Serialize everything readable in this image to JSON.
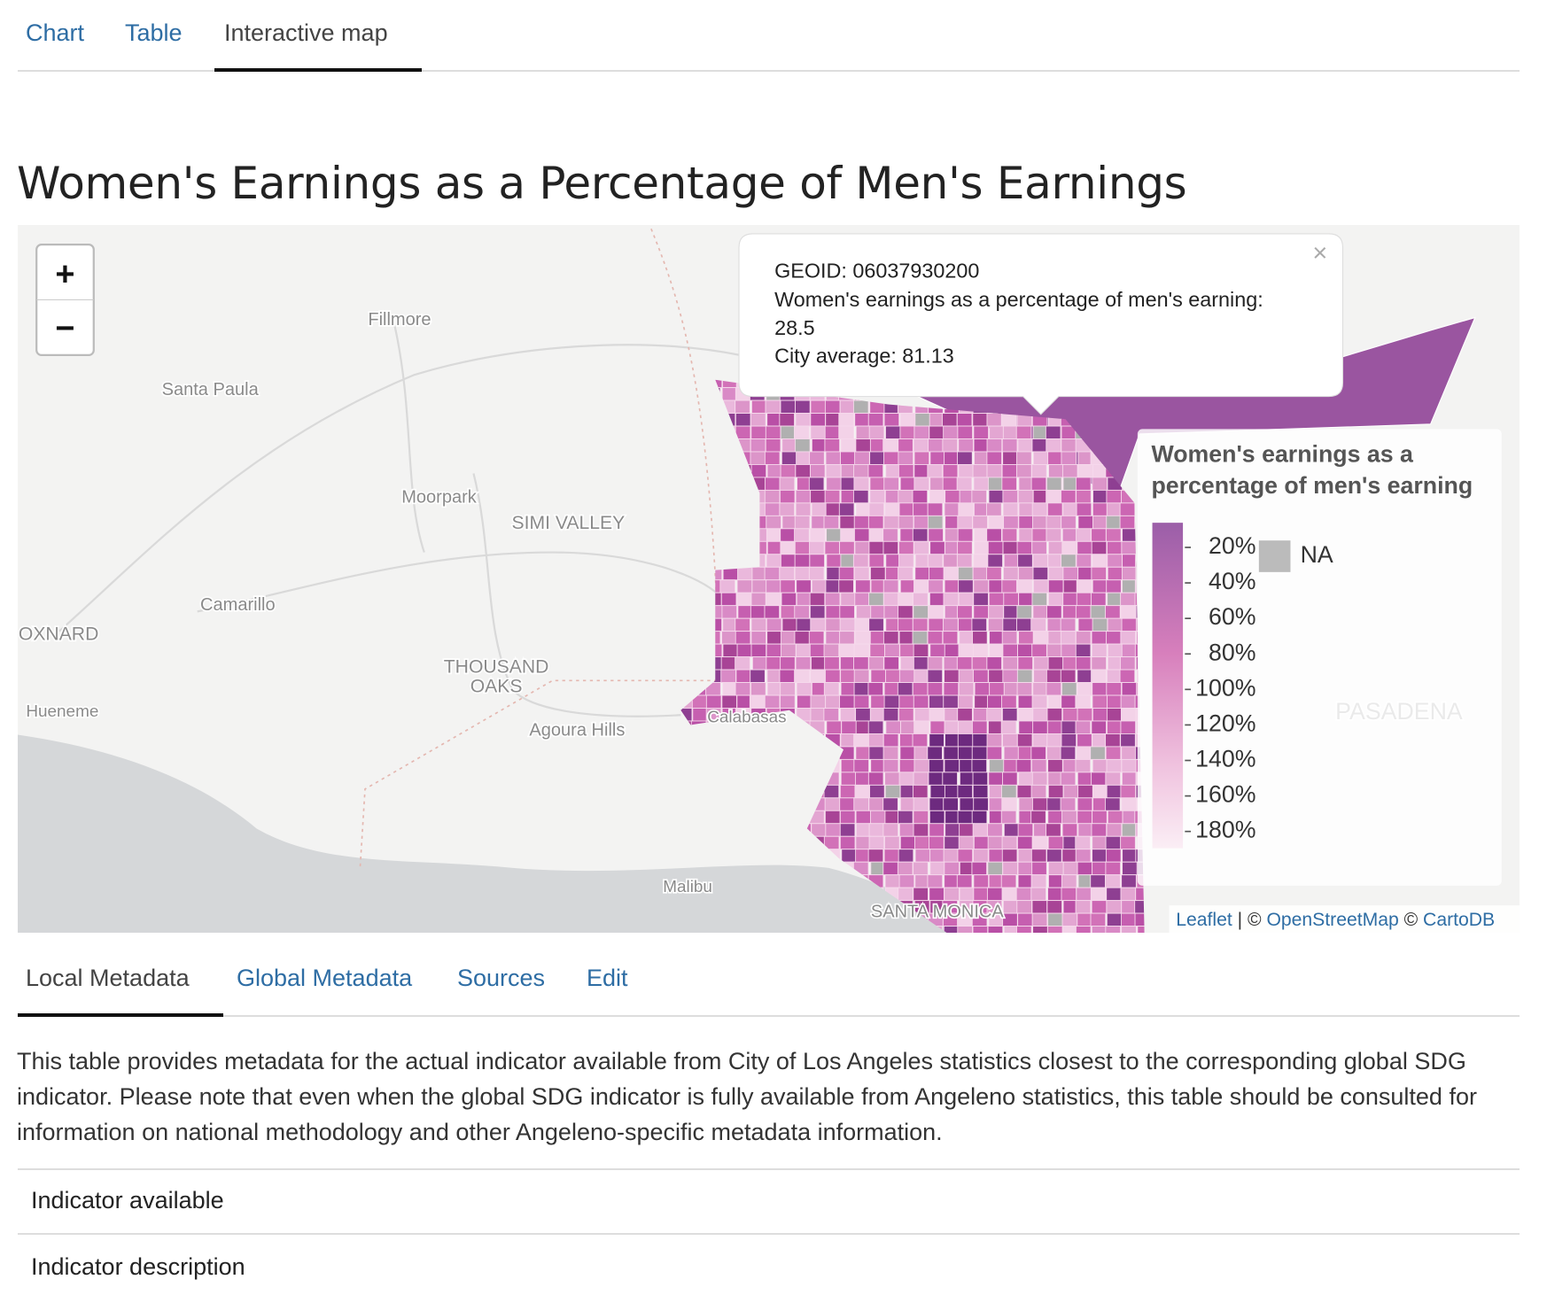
{
  "tabs": [
    "Chart",
    "Table",
    "Interactive map"
  ],
  "title": "Women's Earnings as a Percentage of Men's Earnings",
  "map": {
    "zoom_in": "+",
    "zoom_out": "−",
    "place_labels": [
      "Fillmore",
      "Santa Paula",
      "Moorpark",
      "SIMI VALLEY",
      "Camarillo",
      "OXNARD",
      "Hueneme",
      "THOUSAND",
      "OAKS",
      "Agoura Hills",
      "Calabasas",
      "Malibu",
      "SANTA MONICA",
      "PASADENA"
    ],
    "popup": {
      "close": "×",
      "lines": [
        "GEOID: 06037930200",
        "Women's earnings as a percentage of men's earning:",
        "28.5",
        "City average: 81.13"
      ]
    },
    "legend": {
      "title_lines": [
        "Women's earnings as a",
        "percentage of men's earning"
      ],
      "ticks": [
        "20%",
        "40%",
        "60%",
        "80%",
        "100%",
        "120%",
        "140%",
        "160%",
        "180%"
      ],
      "na": "NA"
    },
    "attribution": [
      "Leaflet",
      " | © ",
      "OpenStreetMap",
      " © ",
      "CartoDB"
    ]
  },
  "metadata_tabs": [
    "Local Metadata",
    "Global Metadata",
    "Sources",
    "Edit"
  ],
  "description": "This table provides metadata for the actual indicator available from City of Los Angeles statistics closest to the corresponding global SDG indicator. Please note that even when the global SDG indicator is fully available from Angeleno statistics, this table should be consulted for information on national methodology and other Angeleno-specific metadata information.",
  "rows": [
    "Indicator available",
    "Indicator description"
  ]
}
